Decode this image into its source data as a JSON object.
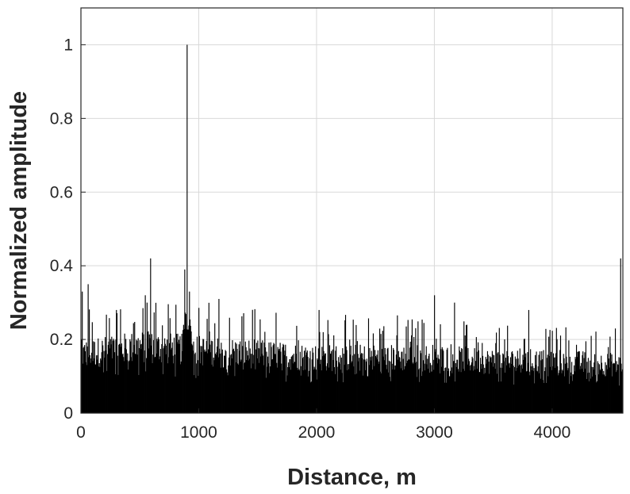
{
  "chart_data": {
    "type": "bar",
    "title": "",
    "xlabel": "Distance, m",
    "ylabel": "Normalized amplitude",
    "xlim": [
      0,
      4600
    ],
    "ylim": [
      0,
      1.1
    ],
    "x_ticks": [
      0,
      1000,
      2000,
      3000,
      4000
    ],
    "y_ticks": [
      0,
      0.2,
      0.4,
      0.6,
      0.8,
      1
    ],
    "x_tick_labels": [
      "0",
      "1000",
      "2000",
      "3000",
      "4000"
    ],
    "y_tick_labels": [
      "0",
      "0.2",
      "0.4",
      "0.6",
      "0.8",
      "1"
    ],
    "grid": true,
    "legend": "none",
    "bar_color": "#000000",
    "series": [
      {
        "x_spacing_m": 5,
        "noise_floor": [
          {
            "x": 0,
            "y": 0.16
          },
          {
            "x": 500,
            "y": 0.18
          },
          {
            "x": 1000,
            "y": 0.17
          },
          {
            "x": 1500,
            "y": 0.16
          },
          {
            "x": 2000,
            "y": 0.15
          },
          {
            "x": 2500,
            "y": 0.15
          },
          {
            "x": 3000,
            "y": 0.15
          },
          {
            "x": 3500,
            "y": 0.14
          },
          {
            "x": 4000,
            "y": 0.14
          },
          {
            "x": 4600,
            "y": 0.13
          }
        ],
        "peaks": [
          {
            "x": 10,
            "y": 0.33
          },
          {
            "x": 60,
            "y": 0.35
          },
          {
            "x": 300,
            "y": 0.28
          },
          {
            "x": 560,
            "y": 0.3
          },
          {
            "x": 590,
            "y": 0.42
          },
          {
            "x": 880,
            "y": 0.39
          },
          {
            "x": 900,
            "y": 1.0
          },
          {
            "x": 920,
            "y": 0.33
          },
          {
            "x": 1170,
            "y": 0.31
          },
          {
            "x": 2020,
            "y": 0.28
          },
          {
            "x": 3000,
            "y": 0.32
          },
          {
            "x": 3170,
            "y": 0.3
          },
          {
            "x": 3800,
            "y": 0.28
          },
          {
            "x": 4580,
            "y": 0.42
          },
          {
            "x": 4600,
            "y": 0.39
          }
        ]
      }
    ]
  }
}
